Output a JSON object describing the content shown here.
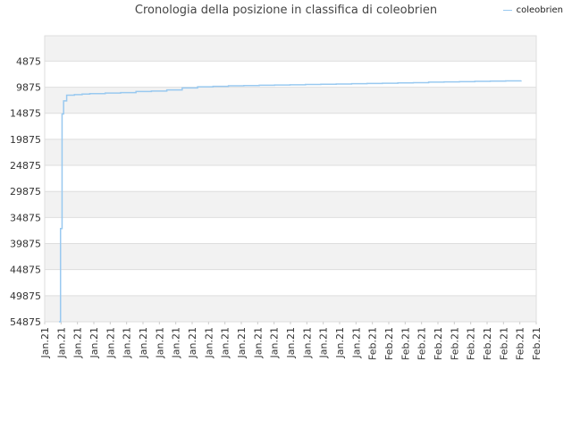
{
  "chart_data": {
    "type": "line",
    "title": "Cronologia della posizione in classifica di coleobrien",
    "xlabel": "",
    "ylabel": "",
    "y_inverted": true,
    "ylim": [
      54875,
      0
    ],
    "y_ticks": [
      4875,
      9875,
      14875,
      19875,
      24875,
      29875,
      34875,
      39875,
      44875,
      49875,
      54875
    ],
    "x_tick_labels": [
      "Jan.21",
      "Jan.21",
      "Jan.21",
      "Jan.21",
      "Jan.21",
      "Jan.21",
      "Jan.21",
      "Jan.21",
      "Jan.21",
      "Jan.21",
      "Jan.21",
      "Jan.21",
      "Jan.21",
      "Jan.21",
      "Jan.21",
      "Jan.21",
      "Jan.21",
      "Jan.21",
      "Jan.21",
      "Jan.21",
      "Feb.21",
      "Feb.21",
      "Feb.21",
      "Feb.21",
      "Feb.21",
      "Feb.21",
      "Feb.21",
      "Feb.21",
      "Feb.21",
      "Feb.21",
      "Feb.21"
    ],
    "grid": true,
    "legend_position": "top-right",
    "series": [
      {
        "name": "coleobrien",
        "color": "#99c9f0",
        "x": [
          0.0,
          0.1,
          0.2,
          0.3,
          0.5,
          1.0,
          1.5,
          2.0,
          3.0,
          4.0,
          5.0,
          6.0,
          7.0,
          8.0,
          9.0,
          10.0,
          11.0,
          12.0,
          13.0,
          14.0,
          15.0,
          16.0,
          17.0,
          18.0,
          19.0,
          20.0,
          21.0,
          22.0,
          23.0,
          24.0,
          25.0,
          26.0,
          27.0,
          28.0,
          29.0,
          30.0
        ],
        "values": [
          54875,
          37000,
          15000,
          12500,
          11400,
          11300,
          11200,
          11100,
          11000,
          10900,
          10700,
          10600,
          10400,
          10000,
          9800,
          9700,
          9600,
          9550,
          9500,
          9450,
          9400,
          9350,
          9300,
          9250,
          9200,
          9150,
          9100,
          9050,
          9000,
          8900,
          8850,
          8800,
          8750,
          8700,
          8650,
          8600
        ]
      }
    ]
  }
}
